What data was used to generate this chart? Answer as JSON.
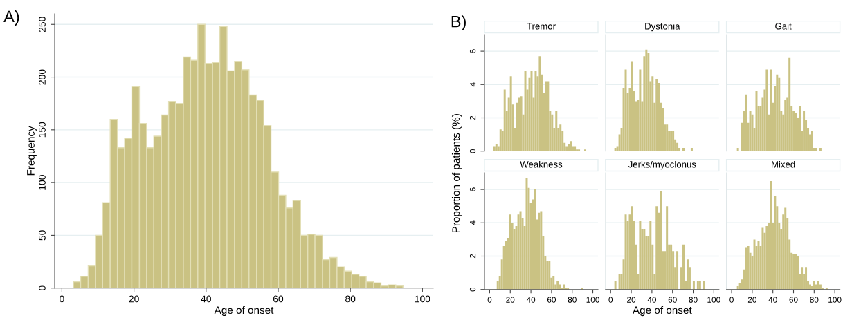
{
  "chart_data": [
    {
      "type": "histogram",
      "xlabel": "Age of onset",
      "ylabel": "Frequency",
      "annotations": [
        "A)"
      ],
      "color": "#cac283",
      "grid": "y",
      "xlim": [
        -2,
        103
      ],
      "ylim": [
        0,
        260
      ],
      "xticks": [
        0,
        20,
        40,
        60,
        80,
        100
      ],
      "yticks": [
        0,
        50,
        100,
        150,
        200,
        250
      ],
      "bins": [
        3.2,
        5.2,
        7.3,
        9.3,
        11.3,
        13.4,
        15.4,
        17.4,
        19.4,
        21.5,
        23.5,
        25.5,
        27.6,
        29.6,
        31.6,
        33.7,
        35.7,
        37.7,
        39.7,
        41.8,
        43.8,
        45.8,
        47.9,
        49.9,
        51.9,
        54.0,
        56.0,
        58.0,
        60.1,
        62.1,
        64.1,
        66.2,
        68.2,
        70.2,
        72.3,
        74.3,
        76.3,
        78.3,
        80.4,
        82.4,
        84.4,
        86.5,
        88.5,
        90.5,
        92.6,
        94.6
      ],
      "values": [
        6,
        11,
        21,
        50,
        81,
        160,
        133,
        142,
        191,
        156,
        133,
        144,
        164,
        177,
        175,
        219,
        216,
        250,
        213,
        214,
        248,
        206,
        215,
        207,
        183,
        178,
        154,
        110,
        88,
        76,
        83,
        50,
        51,
        50,
        27,
        29,
        20,
        16,
        13,
        11,
        6,
        5,
        2,
        3,
        2
      ]
    },
    {
      "type": "histogram",
      "title": "Tremor",
      "ylabel": "Proportion of patients (%)",
      "annotations": [
        "B)"
      ],
      "color": "#cac283",
      "grid": "y",
      "tick_labels": "y",
      "xlim": [
        -5,
        105
      ],
      "ylim": [
        0,
        7
      ],
      "xticks": [
        0,
        20,
        40,
        60,
        80,
        100
      ],
      "yticks": [
        0,
        2,
        4,
        6
      ],
      "bins": [
        3.6,
        5.6,
        7.6,
        9.6,
        11.6,
        13.6,
        15.6,
        17.6,
        19.6,
        21.6,
        23.6,
        25.6,
        27.6,
        29.6,
        31.6,
        33.6,
        35.6,
        37.6,
        39.6,
        41.6,
        43.6,
        45.6,
        47.6,
        49.6,
        51.6,
        53.6,
        55.6,
        57.6,
        59.6,
        61.6,
        63.6,
        65.6,
        67.6,
        69.6,
        71.6,
        73.6,
        75.6,
        77.6,
        79.6,
        81.6,
        83.6,
        85.6,
        87.6,
        89.6,
        91.6,
        93.6
      ],
      "values": [
        0.3,
        0.4,
        0.3,
        1.3,
        1.2,
        3.7,
        2.4,
        3.2,
        4.5,
        2.8,
        1.4,
        2.9,
        3.2,
        3.3,
        2.2,
        4.8,
        3.7,
        4.4,
        4.8,
        3.2,
        4.8,
        4.5,
        5.7,
        4.6,
        3.5,
        4.2,
        4.2,
        2.4,
        2.2,
        1.4,
        2.4,
        1.4,
        1.6,
        1.2,
        0.5,
        0.3,
        0.4,
        0.6,
        0.3,
        0.3,
        0.1,
        0.1,
        0,
        0,
        0.1
      ]
    },
    {
      "type": "histogram",
      "title": "Dystonia",
      "color": "#cac283",
      "grid": "y",
      "tick_labels": false,
      "xlim": [
        -5,
        105
      ],
      "ylim": [
        0,
        7
      ],
      "xticks": [
        0,
        20,
        40,
        60,
        80,
        100
      ],
      "yticks": [
        0,
        2,
        4,
        6
      ],
      "bins": [
        3.6,
        5.6,
        7.6,
        9.6,
        11.6,
        13.6,
        15.6,
        17.6,
        19.6,
        21.6,
        23.6,
        25.6,
        27.6,
        29.6,
        31.6,
        33.6,
        35.6,
        37.6,
        39.6,
        41.6,
        43.6,
        45.6,
        47.6,
        49.6,
        51.6,
        53.6,
        55.6,
        57.6,
        59.6,
        61.6,
        63.6,
        65.6,
        67.6,
        69.6,
        71.6,
        73.6,
        75.6,
        77.6,
        79.6
      ],
      "values": [
        0.2,
        0.3,
        1.0,
        1.4,
        3.8,
        4.9,
        3.5,
        3.8,
        5.4,
        3.6,
        3.0,
        3.1,
        4.9,
        3.0,
        5.7,
        6.1,
        5.9,
        4.2,
        4.5,
        2.9,
        4.3,
        4.1,
        2.9,
        2.6,
        1.6,
        1.6,
        1.2,
        1.2,
        1.2,
        0.7,
        0.5,
        0.2,
        0,
        0.2,
        0,
        0,
        0,
        0.2
      ]
    },
    {
      "type": "histogram",
      "title": "Gait",
      "color": "#cac283",
      "grid": "y",
      "tick_labels": false,
      "xlim": [
        -5,
        105
      ],
      "ylim": [
        0,
        7
      ],
      "xticks": [
        0,
        20,
        40,
        60,
        80,
        100
      ],
      "yticks": [
        0,
        2,
        4,
        6
      ],
      "bins": [
        5.1,
        7.1,
        9.1,
        11.1,
        13.1,
        15.1,
        17.1,
        19.1,
        21.1,
        23.1,
        25.1,
        27.1,
        29.1,
        31.1,
        33.1,
        35.1,
        37.1,
        39.1,
        41.1,
        43.1,
        45.1,
        47.1,
        49.1,
        51.1,
        53.1,
        55.1,
        57.1,
        59.1,
        61.1,
        63.1,
        65.1,
        67.1,
        69.1,
        71.1,
        73.1,
        75.1,
        77.1,
        79.1,
        81.1,
        83.1,
        85.1,
        87.1
      ],
      "values": [
        0.2,
        0,
        1.7,
        2.4,
        3.4,
        1.7,
        2.4,
        2.2,
        1.4,
        3.6,
        2.7,
        2.7,
        3.2,
        3.7,
        4.9,
        2.2,
        4.9,
        2.9,
        3.9,
        4.6,
        4.4,
        2.4,
        2.2,
        3.1,
        3.2,
        5.6,
        2.7,
        2.4,
        2.3,
        2.0,
        2.7,
        1.2,
        2.4,
        1.9,
        1.4,
        1.0,
        1.2,
        0.2,
        0.2,
        0,
        0.2
      ]
    },
    {
      "type": "histogram",
      "title": "Weakness",
      "color": "#cac283",
      "grid": "y",
      "xlim": [
        -5,
        105
      ],
      "ylim": [
        0,
        7
      ],
      "xticks": [
        0,
        20,
        40,
        60,
        80,
        100
      ],
      "yticks": [
        0,
        2,
        4,
        6
      ],
      "bins": [
        6.9,
        8.9,
        10.9,
        12.9,
        14.9,
        16.9,
        18.9,
        20.9,
        22.9,
        24.9,
        26.9,
        28.9,
        30.9,
        32.9,
        34.9,
        36.9,
        38.9,
        40.9,
        42.9,
        44.9,
        46.9,
        48.9,
        50.9,
        52.9,
        54.9,
        56.9,
        58.9,
        60.9,
        62.9,
        64.9,
        66.9,
        68.9,
        70.9,
        72.9,
        74.9,
        76.9,
        78.9,
        80.9,
        82.9,
        84.9,
        86.9,
        88.9,
        90.9
      ],
      "values": [
        0.5,
        0.8,
        1.8,
        2.6,
        2.9,
        3.1,
        4.5,
        4.0,
        3.6,
        3.8,
        4.5,
        4.7,
        4.3,
        3.8,
        6.7,
        6.1,
        5.2,
        5.4,
        6.0,
        4.2,
        4.6,
        4.7,
        3.2,
        2.0,
        1.7,
        1.7,
        0.7,
        0.8,
        0.3,
        0.5,
        0.3,
        0.1,
        0.3,
        0.1,
        0.1,
        0,
        0,
        0,
        0,
        0,
        0,
        0.1
      ]
    },
    {
      "type": "histogram",
      "title": "Jerks/myoclonus",
      "xlabel": "Age of onset",
      "color": "#cac283",
      "grid": "y",
      "tick_labels": "x",
      "xlim": [
        -5,
        105
      ],
      "ylim": [
        0,
        7
      ],
      "xticks": [
        0,
        20,
        40,
        60,
        80,
        100
      ],
      "yticks": [
        0,
        2,
        4,
        6
      ],
      "bins": [
        3.6,
        5.6,
        7.6,
        9.6,
        11.6,
        13.6,
        15.6,
        17.6,
        19.6,
        21.6,
        23.6,
        25.6,
        27.6,
        29.6,
        31.6,
        33.6,
        35.6,
        37.6,
        39.6,
        41.6,
        43.6,
        45.6,
        47.6,
        49.6,
        51.6,
        53.6,
        55.6,
        57.6,
        59.6,
        61.6,
        63.6,
        65.6,
        67.6,
        69.6,
        71.6,
        73.6,
        75.6,
        77.6,
        79.6,
        81.6,
        83.6,
        85.6,
        87.6,
        89.6,
        91.6
      ],
      "values": [
        0.5,
        0,
        0.9,
        0.9,
        1.8,
        4.5,
        4.1,
        4.5,
        5.0,
        4.1,
        2.7,
        0.9,
        4.1,
        3.6,
        3.6,
        3.2,
        3.2,
        4.1,
        2.7,
        0.9,
        5.0,
        4.6,
        5.9,
        2.3,
        2.3,
        5.0,
        2.7,
        2.7,
        2.3,
        1.3,
        2.3,
        0,
        1.3,
        2.7,
        0.5,
        1.8,
        1.3,
        0,
        0.5,
        0,
        0.5,
        0.5,
        0,
        0.5
      ]
    },
    {
      "type": "histogram",
      "title": "Mixed",
      "color": "#cac283",
      "grid": "y",
      "tick_labels": "x",
      "xlim": [
        -5,
        105
      ],
      "ylim": [
        0,
        7
      ],
      "xticks": [
        0,
        20,
        40,
        60,
        80,
        100
      ],
      "yticks": [
        0,
        2,
        4,
        6
      ],
      "bins": [
        5.1,
        7.1,
        9.1,
        11.1,
        13.1,
        15.1,
        17.1,
        19.1,
        21.1,
        23.1,
        25.1,
        27.1,
        29.1,
        31.1,
        33.1,
        35.1,
        37.1,
        39.1,
        41.1,
        43.1,
        45.1,
        47.1,
        49.1,
        51.1,
        53.1,
        55.1,
        57.1,
        59.1,
        61.1,
        63.1,
        65.1,
        67.1,
        69.1,
        71.1,
        73.1,
        75.1,
        77.1,
        79.1,
        81.1,
        83.1,
        85.1,
        87.1,
        89.1,
        91.1,
        93.1
      ],
      "values": [
        0.2,
        0.4,
        0.6,
        1.2,
        2.5,
        2.6,
        2.2,
        2.0,
        3.0,
        2.6,
        2.9,
        2.6,
        3.7,
        3.4,
        3.8,
        4.0,
        6.5,
        4.0,
        5.6,
        5.0,
        4.0,
        3.6,
        4.5,
        4.9,
        4.3,
        3.0,
        2.2,
        2.1,
        2.1,
        2.0,
        0.9,
        1.3,
        0.9,
        1.3,
        0.5,
        0.3,
        0.2,
        0.5,
        0.3,
        0.5,
        0.3,
        0.1,
        0,
        0.1
      ]
    }
  ]
}
